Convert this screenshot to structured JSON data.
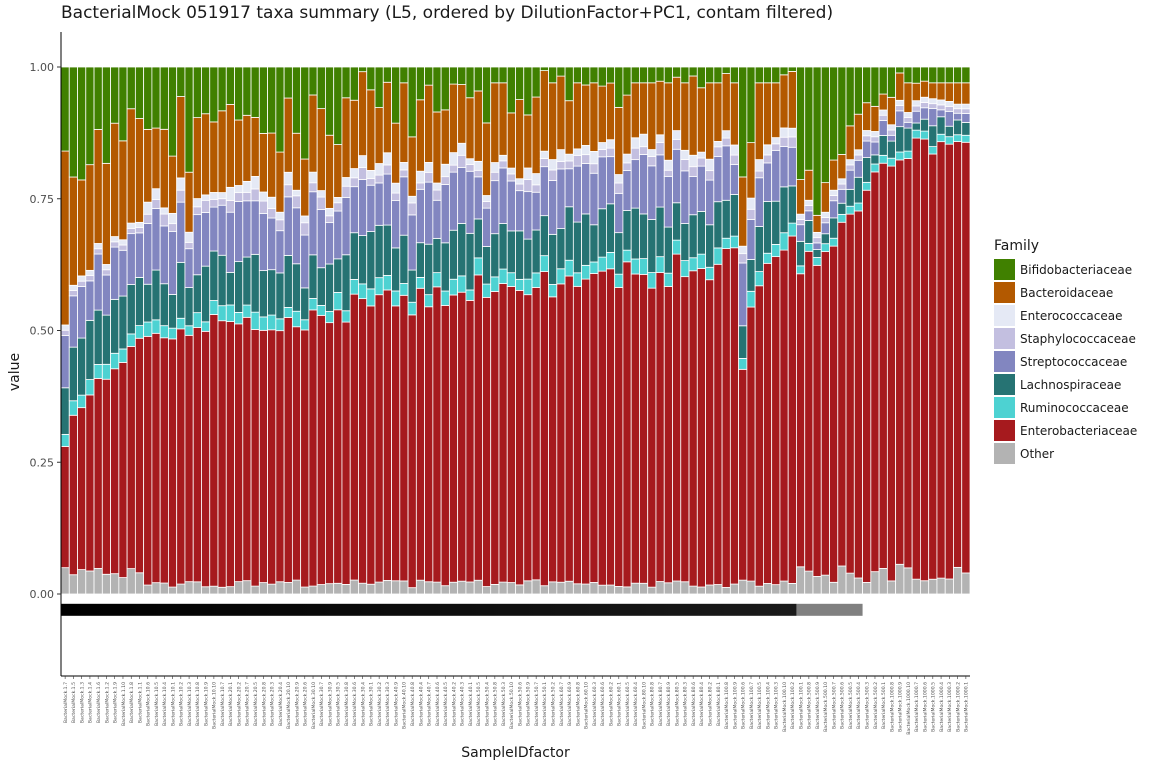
{
  "chart_data": {
    "type": "bar",
    "stacked": true,
    "title": "BacterialMock 051917 taxa summary (L5, ordered by DilutionFactor+PC1, contam filtered)",
    "xlabel": "SampleIDfactor",
    "ylabel": "value",
    "ylim": [
      0,
      1
    ],
    "yticks": [
      "0.00",
      "0.25",
      "0.50",
      "0.75",
      "1.00"
    ],
    "legend_title": "Family",
    "legend_position": "right",
    "series": [
      {
        "name": "Bifidobacteriaceae",
        "color": "#408000"
      },
      {
        "name": "Bacteroidaceae",
        "color": "#b35900"
      },
      {
        "name": "Enterococcaceae",
        "color": "#e5e9f5"
      },
      {
        "name": "Staphylococcaceae",
        "color": "#c3bfe0"
      },
      {
        "name": "Streptococcaceae",
        "color": "#8286c0"
      },
      {
        "name": "Lachnospiraceae",
        "color": "#267373"
      },
      {
        "name": "Ruminococcaceae",
        "color": "#4dd2d2"
      },
      {
        "name": "Enterobacteriaceae",
        "color": "#a61a1e"
      },
      {
        "name": "Other",
        "color": "#b3b3b3"
      }
    ],
    "categories": [
      "BacterialMock.1.7",
      "BacterialMock.1.5",
      "BacterialMock.1.3",
      "BacterialMock.1.4",
      "BacterialMock.1.6",
      "BacterialMock.1.2",
      "BacterialMock.1.9",
      "BacterialMock.1.10",
      "BacterialMock.1.8",
      "BacterialMock.1.1",
      "BacterialMock.10.6",
      "BacterialMock.10.5",
      "BacterialMock.10.4",
      "BacterialMock.10.1",
      "BacterialMock.10.2",
      "BacterialMock.10.3",
      "BacterialMock.10.8",
      "BacterialMock.10.9",
      "BacterialMock.10.10",
      "BacterialMock.10.7",
      "BacterialMock.20.1",
      "BacterialMock.20.2",
      "BacterialMock.20.7",
      "BacterialMock.20.5",
      "BacterialMock.20.8",
      "BacterialMock.20.3",
      "BacterialMock.20.4",
      "BacterialMock.20.10",
      "BacterialMock.20.9",
      "BacterialMock.20.6",
      "BacterialMock.30.10",
      "BacterialMock.30.7",
      "BacterialMock.30.9",
      "BacterialMock.30.5",
      "BacterialMock.30.8",
      "BacterialMock.30.6",
      "BacterialMock.30.4",
      "BacterialMock.30.1",
      "BacterialMock.30.2",
      "BacterialMock.30.3",
      "BacterialMock.40.9",
      "BacterialMock.40.10",
      "BacterialMock.40.8",
      "BacterialMock.40.4",
      "BacterialMock.40.7",
      "BacterialMock.40.6",
      "BacterialMock.40.5",
      "BacterialMock.40.2",
      "BacterialMock.40.3",
      "BacterialMock.40.1",
      "BacterialMock.50.5",
      "BacterialMock.50.4",
      "BacterialMock.50.8",
      "BacterialMock.50.3",
      "BacterialMock.50.10",
      "BacterialMock.50.6",
      "BacterialMock.50.9",
      "BacterialMock.50.7",
      "BacterialMock.50.1",
      "BacterialMock.50.2",
      "BacterialMock.60.7",
      "BacterialMock.60.9",
      "BacterialMock.60.8",
      "BacterialMock.60.10",
      "BacterialMock.60.3",
      "BacterialMock.60.6",
      "BacterialMock.60.2",
      "BacterialMock.60.1",
      "BacterialMock.60.5",
      "BacterialMock.60.4",
      "BacterialMock.80.10",
      "BacterialMock.80.8",
      "BacterialMock.80.7",
      "BacterialMock.80.9",
      "BacterialMock.80.5",
      "BacterialMock.80.3",
      "BacterialMock.80.6",
      "BacterialMock.80.4",
      "BacterialMock.80.2",
      "BacterialMock.80.1",
      "BacterialMock.100.8",
      "BacterialMock.100.9",
      "BacterialMock.100.6",
      "BacterialMock.100.7",
      "BacterialMock.100.5",
      "BacterialMock.100.4",
      "BacterialMock.100.3",
      "BacterialMock.100.10",
      "BacterialMock.100.2",
      "BacterialMock.100.1",
      "BacterialMock.500.8",
      "BacterialMock.500.9",
      "BacterialMock.500.10",
      "BacterialMock.500.7",
      "BacterialMock.500.6",
      "BacterialMock.500.5",
      "BacterialMock.500.4",
      "BacterialMock.500.3",
      "BacterialMock.500.2",
      "BacterialMock.500.1",
      "BacterialMock.1000.8",
      "BacterialMock.1000.9",
      "BacterialMock.1000.10",
      "BacterialMock.1000.7",
      "BacterialMock.1000.6",
      "BacterialMock.1000.5",
      "BacterialMock.1000.4",
      "BacterialMock.1000.3",
      "BacterialMock.1000.2",
      "BacterialMock.1000.1"
    ],
    "annotation_bar": {
      "y_value": -0.03,
      "segments": [
        {
          "from_index": 0,
          "to_index": 88,
          "color": "#000000",
          "to_color": "#1a1a1a"
        },
        {
          "from_index": 89,
          "to_index": 96,
          "color": "#808080",
          "to_color": "#808080"
        }
      ]
    },
    "ylim_display": [
      -0.15,
      1.06
    ]
  }
}
